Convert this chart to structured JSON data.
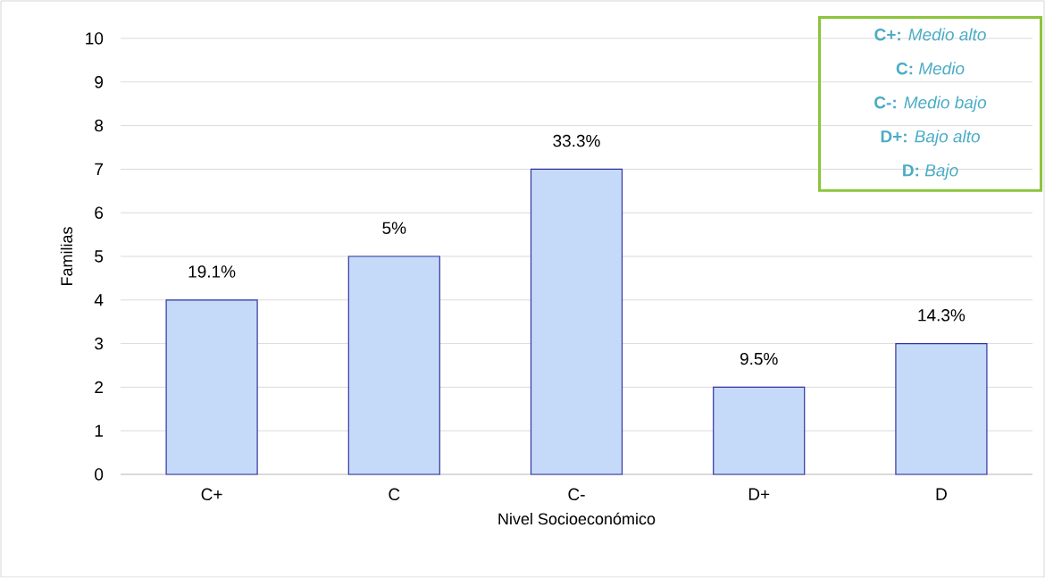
{
  "chart_data": {
    "type": "bar",
    "xlabel": "Nivel Socioeconómico",
    "ylabel": "Familias",
    "categories": [
      "C+",
      "C",
      "C-",
      "D+",
      "D"
    ],
    "values": [
      4,
      5,
      7,
      2,
      3
    ],
    "color": "#c5daf8",
    "ylim": [
      0,
      10
    ],
    "yticks": [
      0,
      1,
      2,
      3,
      4,
      5,
      6,
      7,
      8,
      9,
      10
    ],
    "grid": "y",
    "annotations": [
      "**C+:** *Medio alto*",
      "**C:**  *Medio*",
      "**C-:** *Medio bajo*",
      "**D+:** *Bajo alto*",
      "**D:** *Bajo*",
      {
        "text": "19.1%",
        "x": "C+",
        "y": 4
      },
      {
        "text": "5%",
        "x": "C",
        "y": 5
      },
      {
        "text": "33.3%",
        "x": "C-",
        "y": 7
      },
      {
        "text": "9.5%",
        "x": "D+",
        "y": 2
      },
      {
        "text": "14.3%",
        "x": "D",
        "y": 3
      }
    ]
  }
}
